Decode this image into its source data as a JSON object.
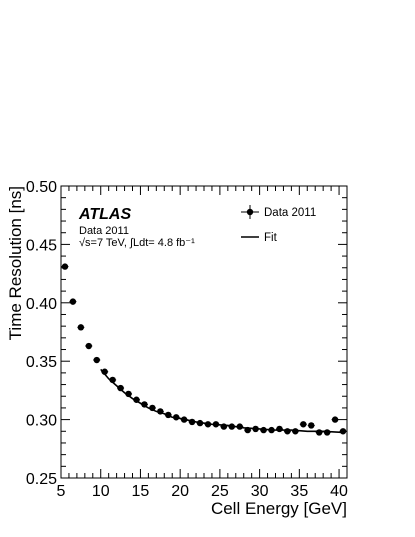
{
  "chart_data": {
    "type": "scatter",
    "xlabel": "Cell Energy [GeV]",
    "ylabel": "Time Resolution [ns]",
    "xlim": [
      5,
      41
    ],
    "ylim": [
      0.25,
      0.5
    ],
    "x_ticks": [
      "5",
      "10",
      "15",
      "20",
      "25",
      "30",
      "35",
      "40"
    ],
    "y_ticks": [
      "0.25",
      "0.30",
      "0.35",
      "0.40",
      "0.45",
      "0.50"
    ],
    "grid": false,
    "legend_position": "top-right",
    "annotations": {
      "experiment": "ATLAS",
      "dataset": "Data 2011",
      "conditions": "√s=7 TeV, ∫Ldt= 4.8 fb⁻¹"
    },
    "series": [
      {
        "name": "Data 2011",
        "marker": "circle-with-errorbars",
        "color": "#000000",
        "x": [
          5.5,
          6.5,
          7.5,
          8.5,
          9.5,
          10.5,
          11.5,
          12.5,
          13.5,
          14.5,
          15.5,
          16.5,
          17.5,
          18.5,
          19.5,
          20.5,
          21.5,
          22.5,
          23.5,
          24.5,
          25.5,
          26.5,
          27.5,
          28.5,
          29.5,
          30.5,
          31.5,
          32.5,
          33.5,
          34.5,
          35.5,
          36.5,
          37.5,
          38.5,
          39.5,
          40.5
        ],
        "y": [
          0.431,
          0.401,
          0.379,
          0.363,
          0.351,
          0.341,
          0.334,
          0.327,
          0.322,
          0.317,
          0.313,
          0.31,
          0.307,
          0.304,
          0.302,
          0.3,
          0.298,
          0.297,
          0.296,
          0.296,
          0.294,
          0.294,
          0.294,
          0.291,
          0.292,
          0.291,
          0.291,
          0.292,
          0.29,
          0.29,
          0.296,
          0.295,
          0.289,
          0.289,
          0.3,
          0.29
        ]
      },
      {
        "name": "Fit",
        "marker": "line",
        "color": "#000000",
        "x": [
          10,
          11,
          12,
          13,
          14,
          15,
          16,
          17,
          18,
          19,
          20,
          22,
          24,
          26,
          28,
          30,
          32,
          34,
          36,
          38,
          40.5
        ],
        "y": [
          0.343,
          0.335,
          0.329,
          0.323,
          0.318,
          0.314,
          0.31,
          0.307,
          0.305,
          0.302,
          0.301,
          0.298,
          0.296,
          0.295,
          0.293,
          0.292,
          0.291,
          0.291,
          0.29,
          0.29,
          0.289
        ]
      }
    ]
  }
}
